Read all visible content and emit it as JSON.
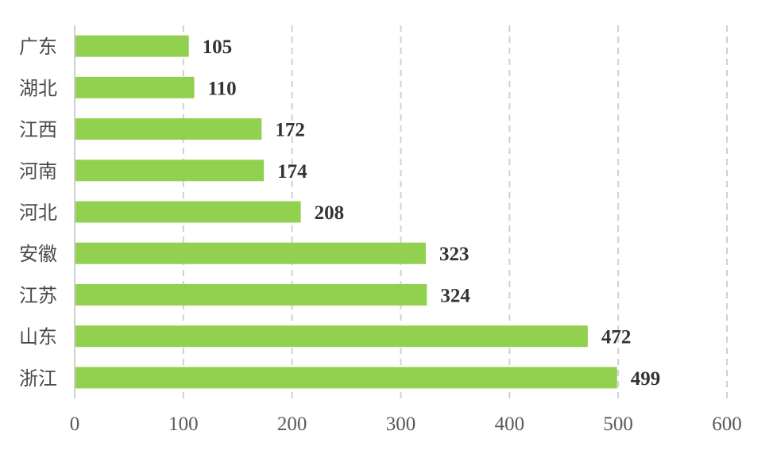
{
  "chart_data": {
    "type": "bar",
    "orientation": "horizontal",
    "categories": [
      "广东",
      "湖北",
      "江西",
      "河南",
      "河北",
      "安徽",
      "江苏",
      "山东",
      "浙江"
    ],
    "values": [
      105,
      110,
      172,
      174,
      208,
      323,
      324,
      472,
      499
    ],
    "xlim": [
      0,
      600
    ],
    "xticks": [
      "0",
      "100",
      "200",
      "300",
      "400",
      "500",
      "600"
    ],
    "grid": "vertical dashed",
    "legend": "none",
    "bar_color": "#92d050",
    "value_labels": [
      "105",
      "110",
      "172",
      "174",
      "208",
      "323",
      "324",
      "472",
      "499"
    ]
  }
}
